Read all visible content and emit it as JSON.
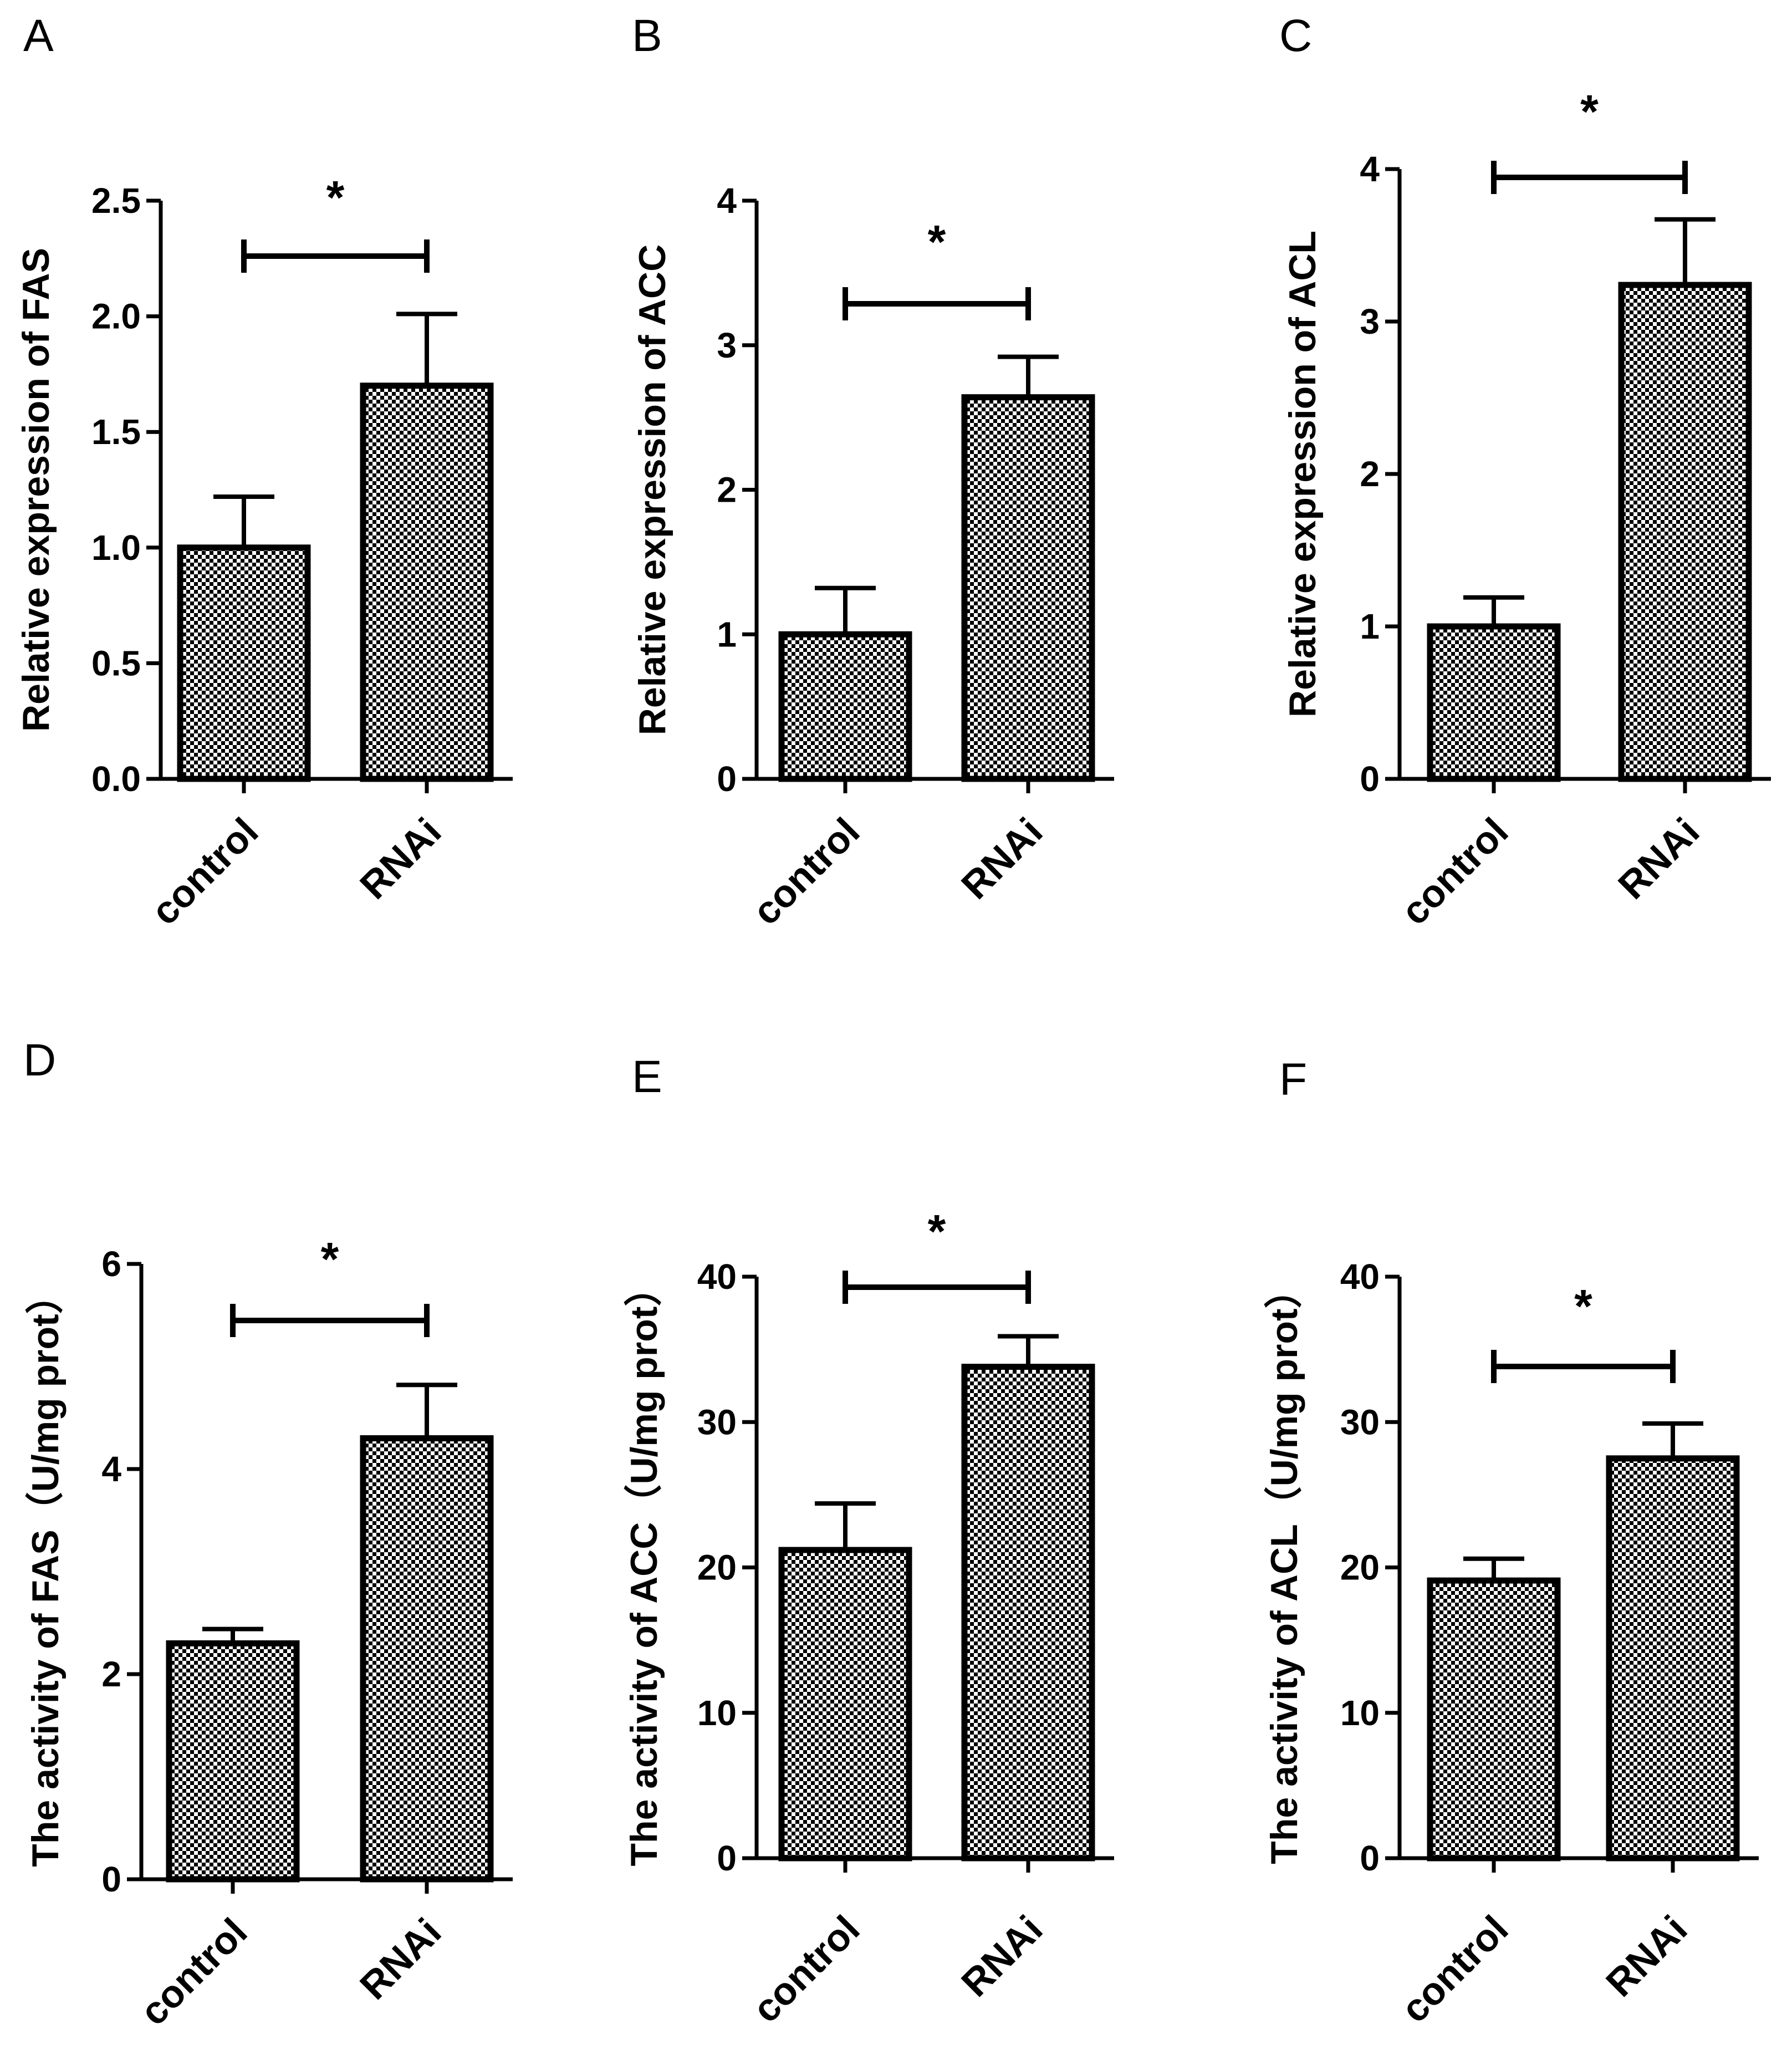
{
  "chart_data": [
    {
      "panel": "A",
      "type": "bar",
      "categories": [
        "control",
        "RNAi"
      ],
      "values": [
        1.0,
        1.7
      ],
      "errors": [
        0.22,
        0.31
      ],
      "ylabel": "Relative expression of FAS",
      "ylim": [
        0,
        2.5
      ],
      "yticks": [
        0.0,
        0.5,
        1.0,
        1.5,
        2.0,
        2.5
      ],
      "ytick_labels": [
        "0.0",
        "0.5",
        "1.0",
        "1.5",
        "2.0",
        "2.5"
      ],
      "significance": "*"
    },
    {
      "panel": "B",
      "type": "bar",
      "categories": [
        "control",
        "RNAi"
      ],
      "values": [
        1.0,
        2.64
      ],
      "errors": [
        0.32,
        0.28
      ],
      "ylabel": "Relative expression of ACC",
      "ylim": [
        0,
        4
      ],
      "yticks": [
        0,
        1,
        2,
        3,
        4
      ],
      "ytick_labels": [
        "0",
        "1",
        "2",
        "3",
        "4"
      ],
      "significance": "*"
    },
    {
      "panel": "C",
      "type": "bar",
      "categories": [
        "control",
        "RNAi"
      ],
      "values": [
        1.0,
        3.24
      ],
      "errors": [
        0.19,
        0.43
      ],
      "ylabel": "Relative expression of ACL",
      "ylim": [
        0,
        4
      ],
      "yticks": [
        0,
        1,
        2,
        3,
        4
      ],
      "ytick_labels": [
        "0",
        "1",
        "2",
        "3",
        "4"
      ],
      "significance": "*"
    },
    {
      "panel": "D",
      "type": "bar",
      "categories": [
        "control",
        "RNAi"
      ],
      "values": [
        2.3,
        4.3
      ],
      "errors": [
        0.14,
        0.52
      ],
      "ylabel": "The activity of FAS（U/mg prot）",
      "ylim": [
        0,
        6
      ],
      "yticks": [
        0,
        2,
        4,
        6
      ],
      "ytick_labels": [
        "0",
        "2",
        "4",
        "6"
      ],
      "significance": "*"
    },
    {
      "panel": "E",
      "type": "bar",
      "categories": [
        "control",
        "RNAi"
      ],
      "values": [
        21.2,
        33.8
      ],
      "errors": [
        3.2,
        2.1
      ],
      "ylabel": "The activity of ACC（U/mg prot）",
      "ylim": [
        0,
        40
      ],
      "yticks": [
        0,
        10,
        20,
        30,
        40
      ],
      "ytick_labels": [
        "0",
        "10",
        "20",
        "30",
        "40"
      ],
      "significance": "*"
    },
    {
      "panel": "F",
      "type": "bar",
      "categories": [
        "control",
        "RNAi"
      ],
      "values": [
        19.1,
        27.5
      ],
      "errors": [
        1.5,
        2.4
      ],
      "ylabel": "The activity of ACL（U/mg prot）",
      "ylim": [
        0,
        40
      ],
      "yticks": [
        0,
        10,
        20,
        30,
        40
      ],
      "ytick_labels": [
        "0",
        "10",
        "20",
        "30",
        "40"
      ],
      "significance": "*"
    }
  ],
  "colors": {
    "bar_dark": "#000000",
    "bar_light": "#ffffff",
    "axis": "#000000"
  }
}
